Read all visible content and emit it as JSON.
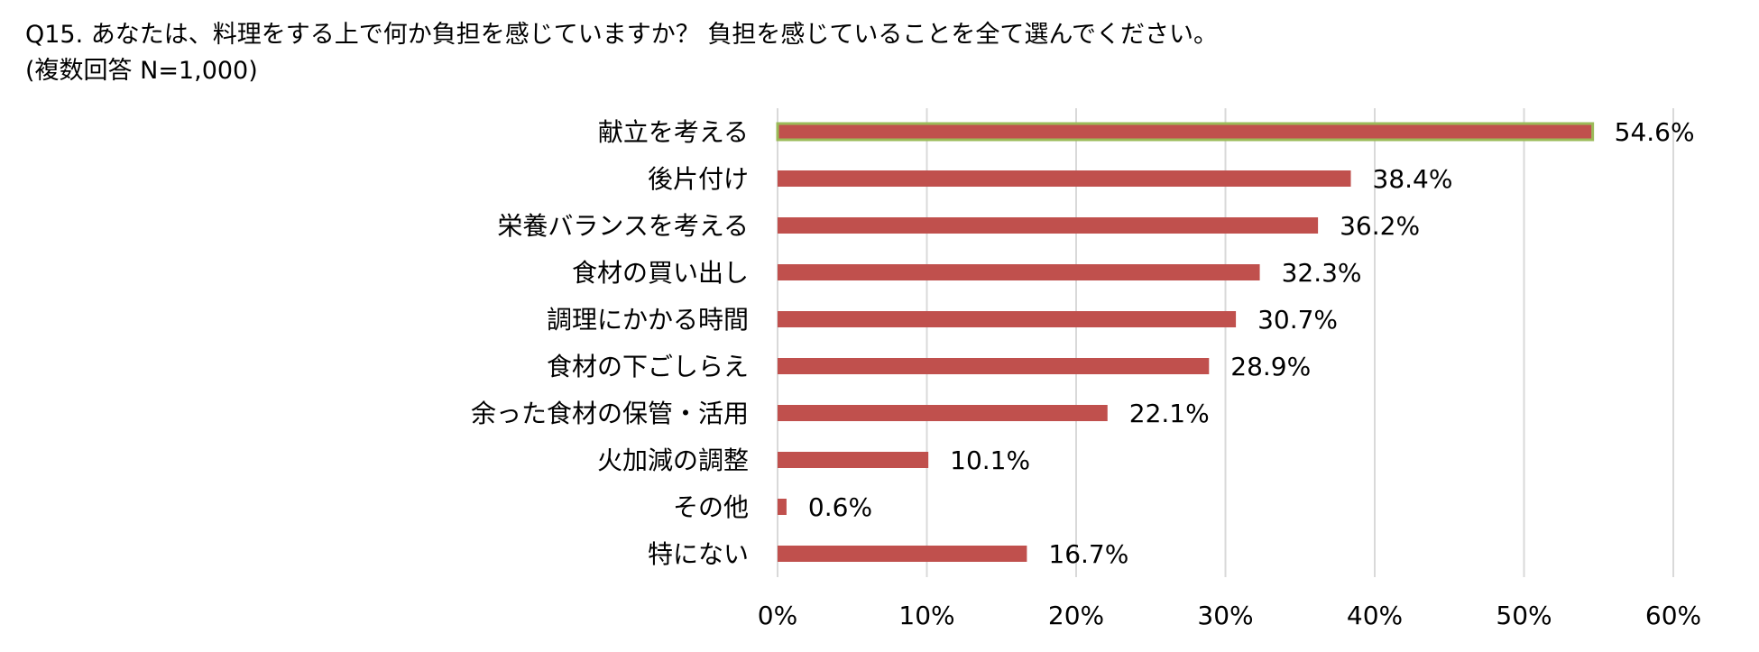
{
  "title_line1": "Q15. あなたは、料理をする上で何か負担を感じていますか？ 負担を感じていることを全て選んでください。",
  "title_line2": "(複数回答 N=1,000)",
  "chart_data": {
    "type": "bar",
    "orientation": "horizontal",
    "title": "Q15. あなたは、料理をする上で何か負担を感じていますか？ 負担を感じていることを全て選んでください。",
    "subtitle": "(複数回答 N=1,000)",
    "categories": [
      "献立を考える",
      "後片付け",
      "栄養バランスを考える",
      "食材の買い出し",
      "調理にかかる時間",
      "食材の下ごしらえ",
      "余った食材の保管・活用",
      "火加減の調整",
      "その他",
      "特にない"
    ],
    "values": [
      54.6,
      38.4,
      36.2,
      32.3,
      30.7,
      28.9,
      22.1,
      10.1,
      0.6,
      16.7
    ],
    "value_labels": [
      "54.6%",
      "38.4%",
      "36.2%",
      "32.3%",
      "30.7%",
      "28.9%",
      "22.1%",
      "10.1%",
      "0.6%",
      "16.7%"
    ],
    "x_ticks": [
      "0%",
      "10%",
      "20%",
      "30%",
      "40%",
      "50%",
      "60%"
    ],
    "xlim": [
      0,
      60
    ],
    "xlabel": "",
    "ylabel": "",
    "grid": "vertical",
    "bar_color": "#c0504d",
    "highlight_outline_color": "#9bbb59",
    "highlight_index": 0
  }
}
